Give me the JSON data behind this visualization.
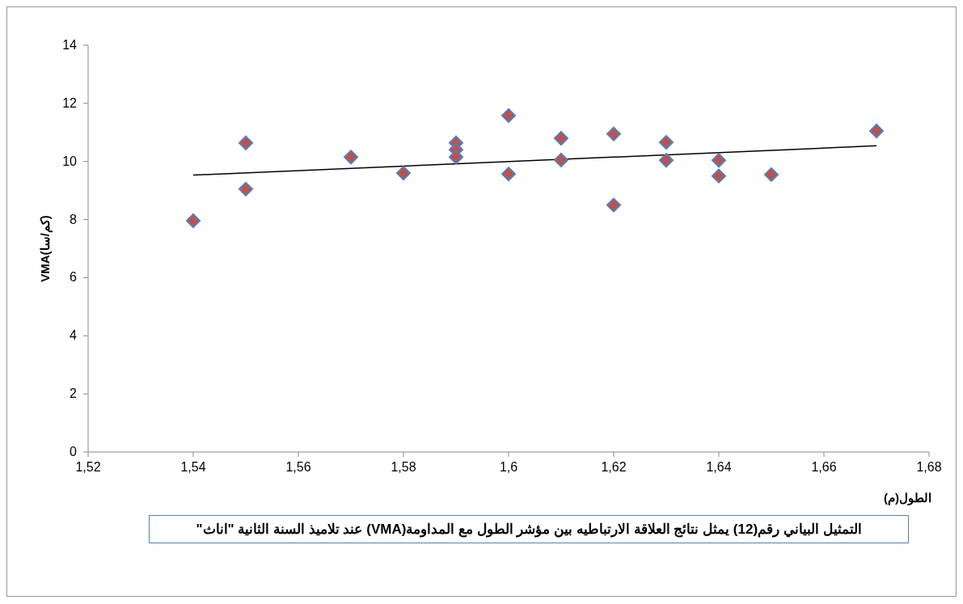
{
  "chart_data": {
    "type": "scatter",
    "title": "التمثيل البياني رقم(12) يمثل نتائج العلاقة الارتباطيه بين مؤشر الطول مع المداومة(VMA) عند تلاميذ السنة الثانية \"اناث\"",
    "xlabel": "الطول(م)",
    "ylabel": "VMA(كم/سا)",
    "xlim": [
      1.52,
      1.68
    ],
    "xticks": [
      {
        "value": 1.52,
        "label": "1,52"
      },
      {
        "value": 1.54,
        "label": "1,54"
      },
      {
        "value": 1.56,
        "label": "1,56"
      },
      {
        "value": 1.58,
        "label": "1,58"
      },
      {
        "value": 1.6,
        "label": "1,6"
      },
      {
        "value": 1.62,
        "label": "1,62"
      },
      {
        "value": 1.64,
        "label": "1,64"
      },
      {
        "value": 1.66,
        "label": "1,66"
      },
      {
        "value": 1.68,
        "label": "1,68"
      }
    ],
    "ylim": [
      0,
      14
    ],
    "yticks": [
      0,
      2,
      4,
      6,
      8,
      10,
      12,
      14
    ],
    "grid": false,
    "legend": false,
    "marker": "diamond",
    "series": [
      {
        "color": "#c0504d",
        "x": [
          1.54,
          1.55,
          1.55,
          1.57,
          1.58,
          1.59,
          1.59,
          1.59,
          1.6,
          1.6,
          1.61,
          1.61,
          1.62,
          1.62,
          1.63,
          1.63,
          1.64,
          1.64,
          1.65,
          1.67
        ],
        "values": [
          7.96,
          10.64,
          9.05,
          10.15,
          9.6,
          10.64,
          10.4,
          10.15,
          11.58,
          9.57,
          10.8,
          10.05,
          10.95,
          8.5,
          10.66,
          10.04,
          10.04,
          9.5,
          9.55,
          11.05
        ]
      },
      {
        "type": "line",
        "marker": "none",
        "color": "#000000",
        "x": [
          1.54,
          1.67
        ],
        "values": [
          9.53,
          10.54
        ]
      }
    ]
  }
}
